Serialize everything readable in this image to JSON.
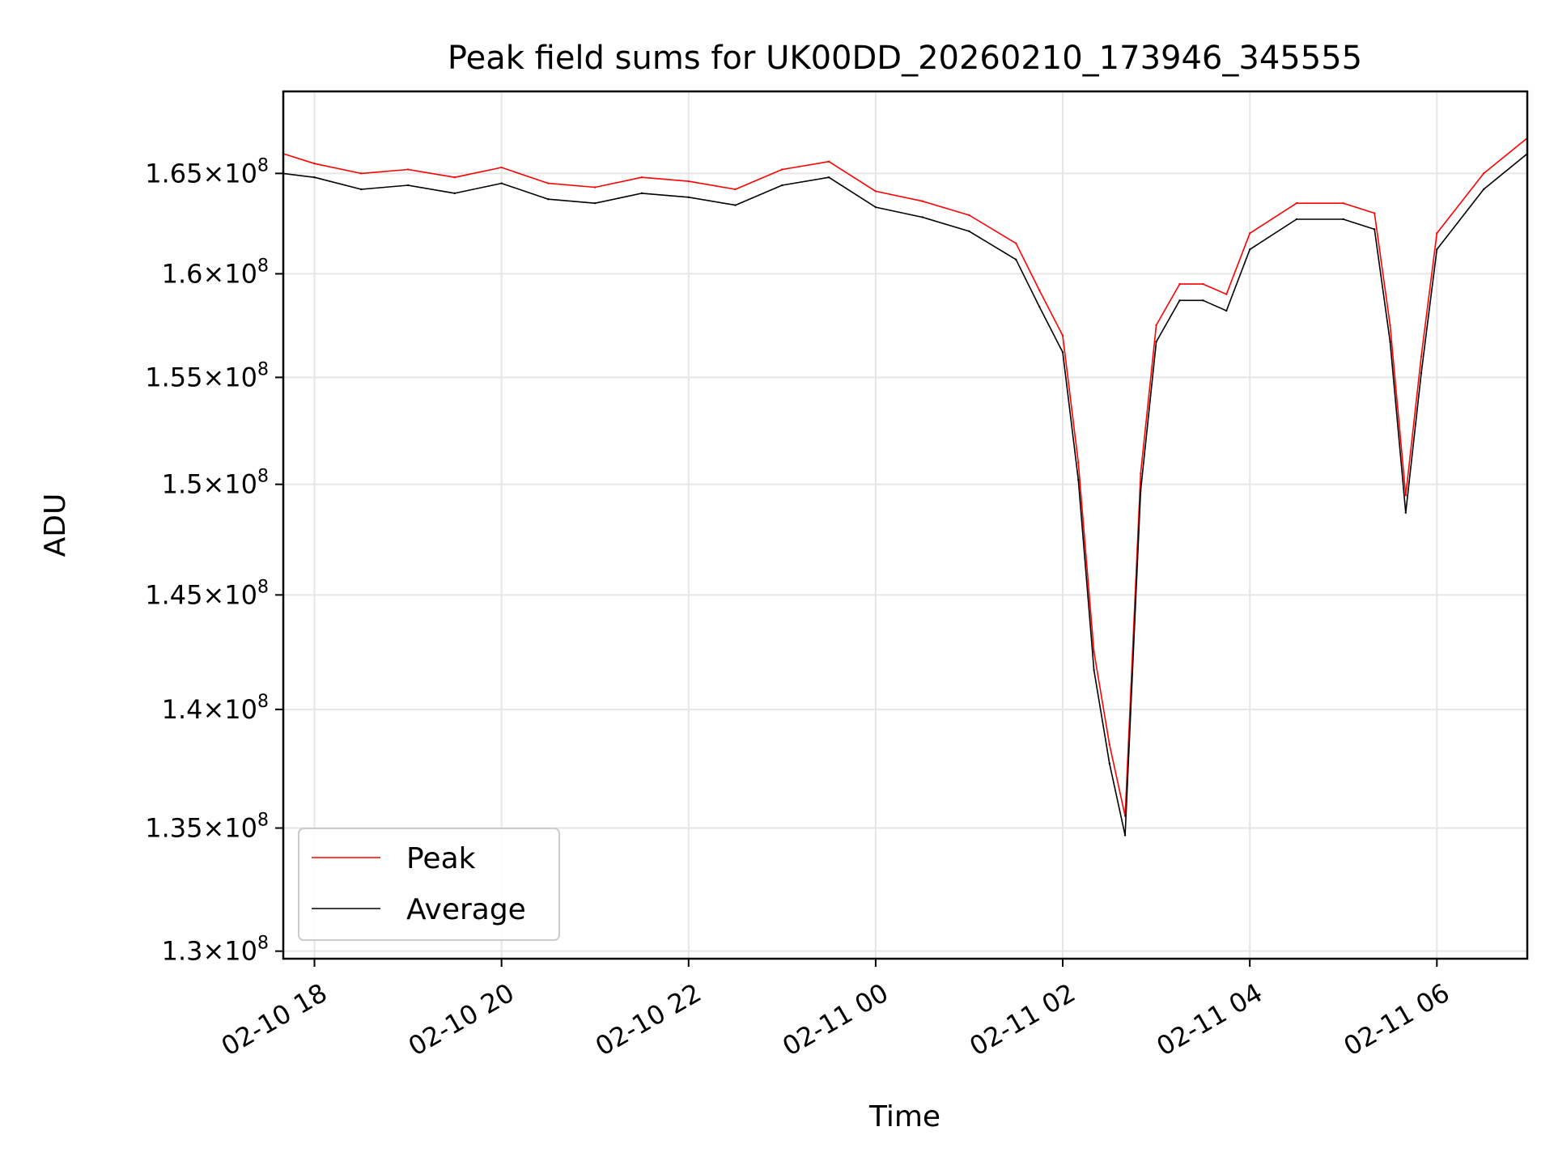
{
  "chart_data": {
    "type": "line",
    "title": "Peak field sums for UK00DD_20260210_173946_345555",
    "xlabel": "Time",
    "ylabel": "ADU",
    "xlim": [
      "2026-02-10 17:40",
      "2026-02-11 06:58"
    ],
    "ylim": [
      129700000,
      169200000
    ],
    "yscale": "log",
    "grid": true,
    "legend_position": "lower-left",
    "x_ticks": [
      {
        "value": "2026-02-10 18:00",
        "label": "02-10 18"
      },
      {
        "value": "2026-02-10 20:00",
        "label": "02-10 20"
      },
      {
        "value": "2026-02-10 22:00",
        "label": "02-10 22"
      },
      {
        "value": "2026-02-11 00:00",
        "label": "02-11 00"
      },
      {
        "value": "2026-02-11 02:00",
        "label": "02-11 02"
      },
      {
        "value": "2026-02-11 04:00",
        "label": "02-11 04"
      },
      {
        "value": "2026-02-11 06:00",
        "label": "02-11 06"
      }
    ],
    "y_ticks": [
      {
        "value": 130000000,
        "mantissa": "1.3",
        "exponent": "8"
      },
      {
        "value": 135000000,
        "mantissa": "1.35",
        "exponent": "8"
      },
      {
        "value": 140000000,
        "mantissa": "1.4",
        "exponent": "8"
      },
      {
        "value": 145000000,
        "mantissa": "1.45",
        "exponent": "8"
      },
      {
        "value": 150000000,
        "mantissa": "1.5",
        "exponent": "8"
      },
      {
        "value": 155000000,
        "mantissa": "1.55",
        "exponent": "8"
      },
      {
        "value": 160000000,
        "mantissa": "1.6",
        "exponent": "8"
      },
      {
        "value": 165000000,
        "mantissa": "1.65",
        "exponent": "8"
      }
    ],
    "series": [
      {
        "name": "Peak",
        "color": "#ff0000",
        "x": [
          "2026-02-10 17:40",
          "2026-02-10 18:00",
          "2026-02-10 18:30",
          "2026-02-10 19:00",
          "2026-02-10 19:30",
          "2026-02-10 20:00",
          "2026-02-10 20:30",
          "2026-02-10 21:00",
          "2026-02-10 21:30",
          "2026-02-10 22:00",
          "2026-02-10 22:30",
          "2026-02-10 23:00",
          "2026-02-10 23:30",
          "2026-02-11 00:00",
          "2026-02-11 00:30",
          "2026-02-11 01:00",
          "2026-02-11 01:30",
          "2026-02-11 01:45",
          "2026-02-11 02:00",
          "2026-02-11 02:10",
          "2026-02-11 02:20",
          "2026-02-11 02:30",
          "2026-02-11 02:40",
          "2026-02-11 02:50",
          "2026-02-11 03:00",
          "2026-02-11 03:15",
          "2026-02-11 03:30",
          "2026-02-11 03:45",
          "2026-02-11 04:00",
          "2026-02-11 04:30",
          "2026-02-11 05:00",
          "2026-02-11 05:20",
          "2026-02-11 05:30",
          "2026-02-11 05:40",
          "2026-02-11 05:50",
          "2026-02-11 06:00",
          "2026-02-11 06:30",
          "2026-02-11 06:58"
        ],
        "values": [
          166000000,
          165500000,
          165000000,
          165200000,
          164800000,
          165300000,
          164500000,
          164300000,
          164800000,
          164600000,
          164200000,
          165200000,
          165600000,
          164100000,
          163600000,
          162900000,
          161500000,
          159200000,
          157000000,
          151000000,
          142500000,
          138500000,
          135500000,
          150500000,
          157500000,
          159500000,
          159500000,
          159000000,
          162000000,
          163500000,
          163500000,
          163000000,
          157500000,
          149500000,
          156000000,
          162000000,
          165000000,
          166800000
        ]
      },
      {
        "name": "Average",
        "color": "#000000",
        "x": [
          "2026-02-10 17:40",
          "2026-02-10 18:00",
          "2026-02-10 18:30",
          "2026-02-10 19:00",
          "2026-02-10 19:30",
          "2026-02-10 20:00",
          "2026-02-10 20:30",
          "2026-02-10 21:00",
          "2026-02-10 21:30",
          "2026-02-10 22:00",
          "2026-02-10 22:30",
          "2026-02-10 23:00",
          "2026-02-10 23:30",
          "2026-02-11 00:00",
          "2026-02-11 00:30",
          "2026-02-11 01:00",
          "2026-02-11 01:30",
          "2026-02-11 01:45",
          "2026-02-11 02:00",
          "2026-02-11 02:10",
          "2026-02-11 02:20",
          "2026-02-11 02:30",
          "2026-02-11 02:40",
          "2026-02-11 02:50",
          "2026-02-11 03:00",
          "2026-02-11 03:15",
          "2026-02-11 03:30",
          "2026-02-11 03:45",
          "2026-02-11 04:00",
          "2026-02-11 04:30",
          "2026-02-11 05:00",
          "2026-02-11 05:20",
          "2026-02-11 05:30",
          "2026-02-11 05:40",
          "2026-02-11 05:50",
          "2026-02-11 06:00",
          "2026-02-11 06:30",
          "2026-02-11 06:58"
        ],
        "values": [
          165000000,
          164800000,
          164200000,
          164400000,
          164000000,
          164500000,
          163700000,
          163500000,
          164000000,
          163800000,
          163400000,
          164400000,
          164800000,
          163300000,
          162800000,
          162100000,
          160700000,
          158400000,
          156200000,
          150200000,
          141700000,
          137700000,
          134700000,
          149700000,
          156700000,
          158700000,
          158700000,
          158200000,
          161200000,
          162700000,
          162700000,
          162200000,
          156700000,
          148700000,
          155200000,
          161200000,
          164200000,
          166000000
        ]
      }
    ]
  }
}
